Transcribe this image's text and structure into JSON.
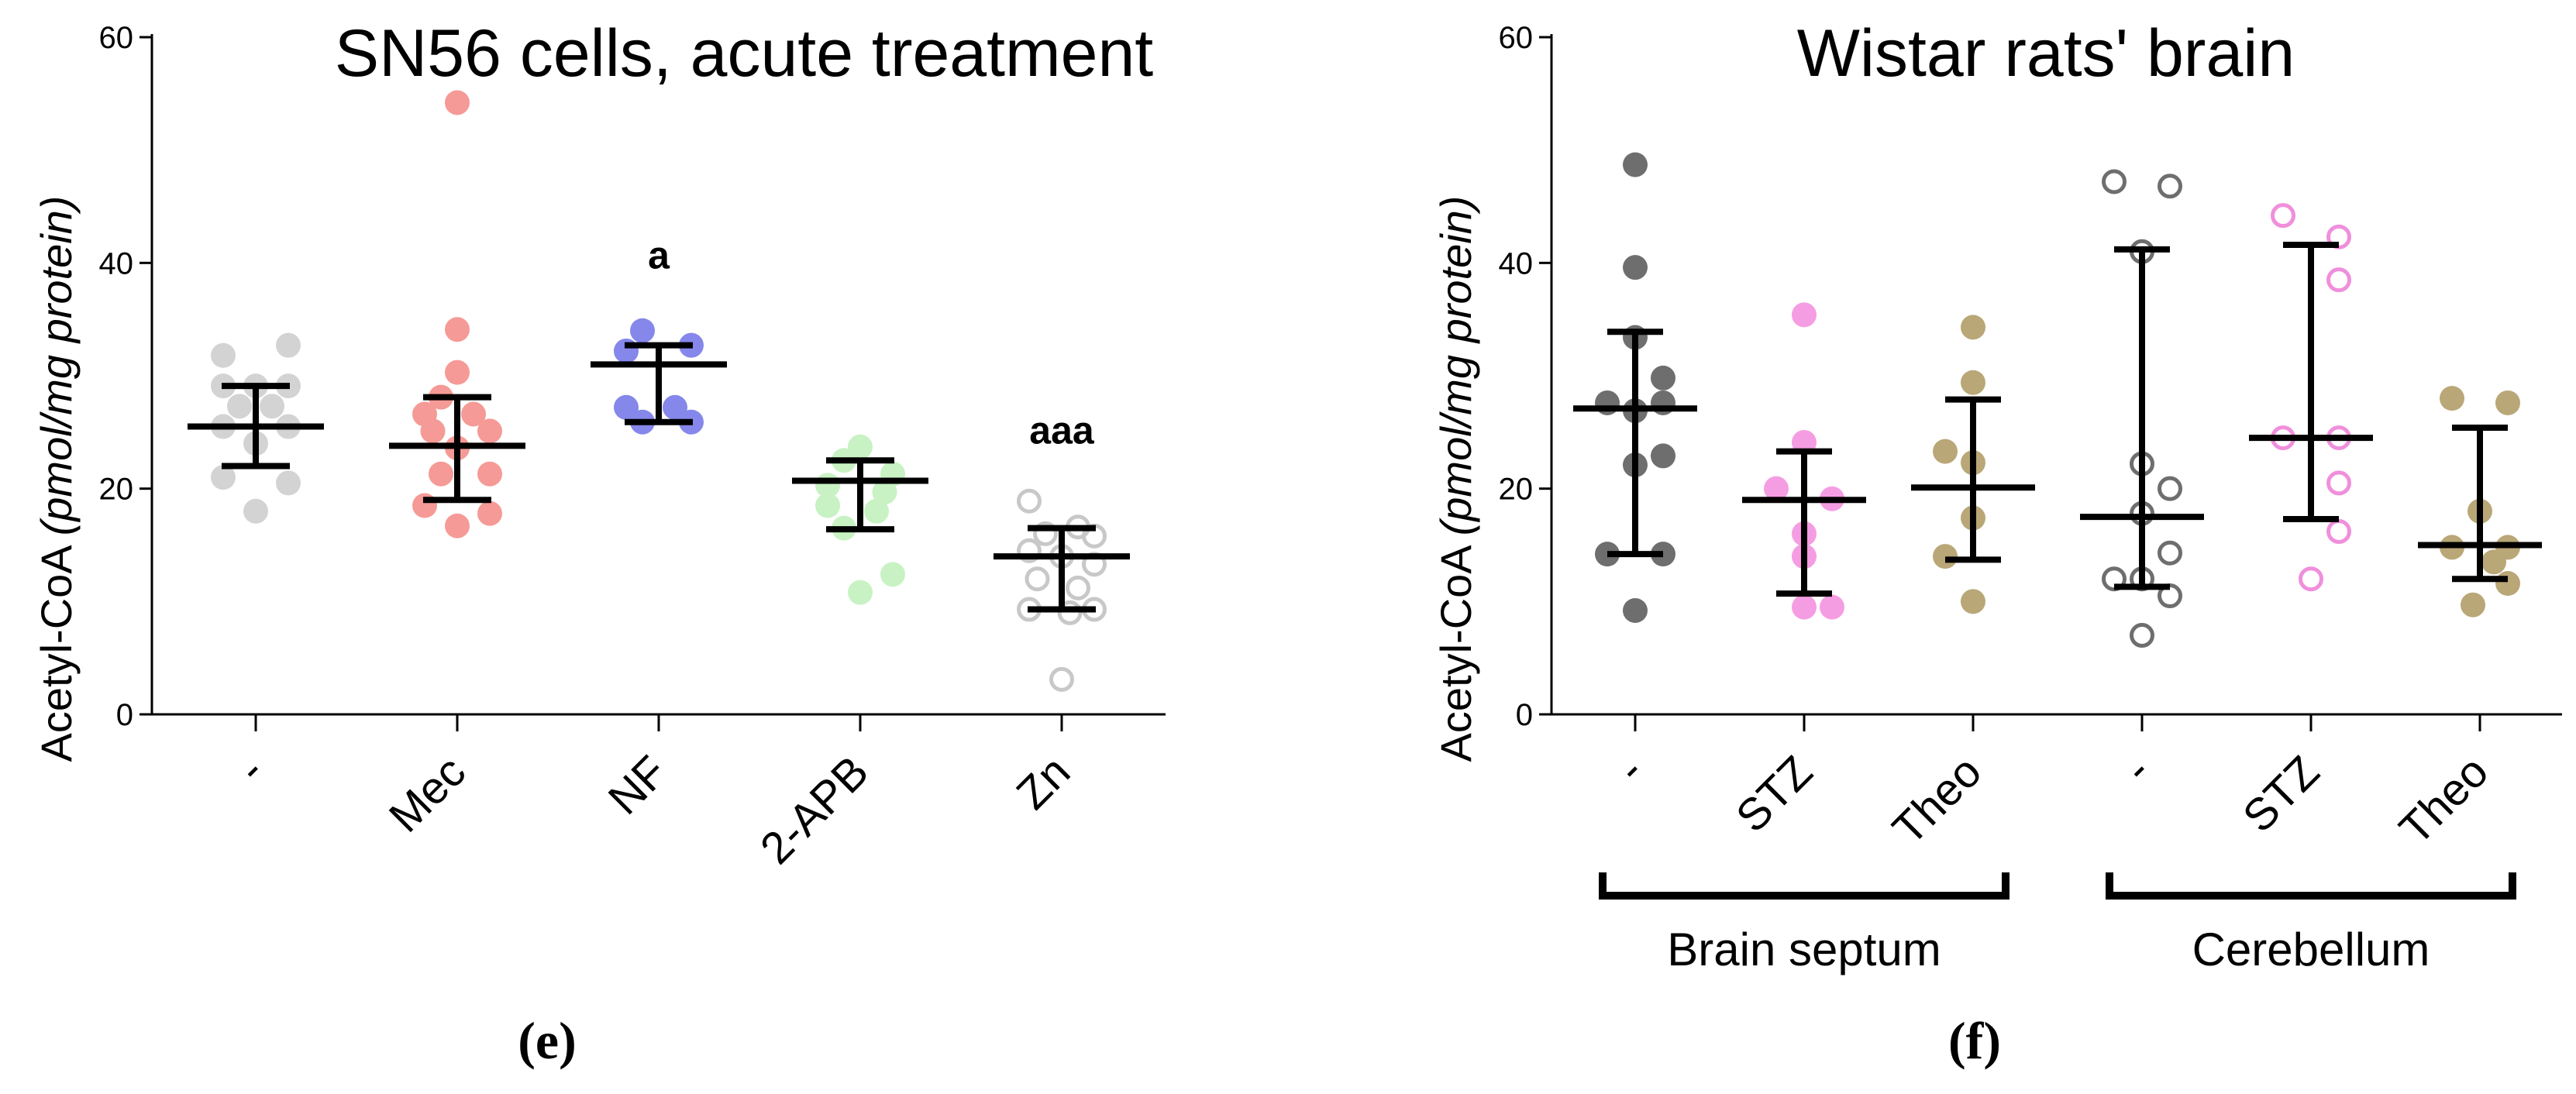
{
  "chart_data": [
    {
      "type": "scatter",
      "panel": "(e)",
      "title": "SN56 cells, acute treatment",
      "ylabel": "Acetyl-CoA",
      "ylabel_unit": "(pmol/mg protein)",
      "ylim": [
        0,
        60
      ],
      "yticks": [
        "0",
        "20",
        "40",
        "60"
      ],
      "categories": [
        "-",
        "Mec",
        "NF",
        "2-APB",
        "Zn"
      ],
      "annotations": [
        {
          "category": 2,
          "text": "a",
          "y": 39.5
        },
        {
          "category": 4,
          "text": "aaa",
          "y": 24
        }
      ],
      "series": [
        {
          "name": "-",
          "color": "#d3d3d3",
          "filled": true,
          "points": [
            [
              -0.2,
              31.8
            ],
            [
              0.2,
              32.7
            ],
            [
              -0.2,
              29.1
            ],
            [
              0,
              29.1
            ],
            [
              0.2,
              29.1
            ],
            [
              -0.1,
              27.3
            ],
            [
              0.1,
              27.3
            ],
            [
              -0.2,
              25.5
            ],
            [
              0.2,
              25.5
            ],
            [
              0,
              24.0
            ],
            [
              -0.2,
              21.0
            ],
            [
              0.2,
              20.5
            ],
            [
              0,
              18.0
            ]
          ],
          "mean": 25.5,
          "err_low": 22.0,
          "err_high": 29.1
        },
        {
          "name": "Mec",
          "color": "#f59a96",
          "filled": true,
          "points": [
            [
              0,
              54.2
            ],
            [
              0,
              34.1
            ],
            [
              0,
              30.3
            ],
            [
              -0.1,
              28.1
            ],
            [
              -0.2,
              26.6
            ],
            [
              0.1,
              26.6
            ],
            [
              -0.15,
              25.1
            ],
            [
              0.2,
              25.1
            ],
            [
              0,
              23.6
            ],
            [
              -0.1,
              21.3
            ],
            [
              0.2,
              21.3
            ],
            [
              -0.2,
              18.5
            ],
            [
              0.2,
              17.8
            ],
            [
              0,
              16.7
            ]
          ],
          "mean": 23.8,
          "err_low": 19.0,
          "err_high": 28.1
        },
        {
          "name": "NF",
          "color": "#8587ea",
          "filled": true,
          "points": [
            [
              -0.1,
              34.0
            ],
            [
              0.2,
              32.7
            ],
            [
              -0.2,
              32.2
            ],
            [
              -0.2,
              27.2
            ],
            [
              0.1,
              27.2
            ],
            [
              -0.1,
              25.9
            ],
            [
              0.2,
              25.9
            ]
          ],
          "mean": 31.0,
          "err_low": 25.9,
          "err_high": 32.7
        },
        {
          "name": "2-APB",
          "color": "#c8f2c3",
          "filled": true,
          "points": [
            [
              0,
              23.7
            ],
            [
              -0.1,
              22.5
            ],
            [
              0.2,
              21.3
            ],
            [
              -0.2,
              20.3
            ],
            [
              0.15,
              19.7
            ],
            [
              -0.2,
              18.5
            ],
            [
              0.1,
              18.0
            ],
            [
              -0.1,
              16.5
            ],
            [
              0.2,
              12.4
            ],
            [
              0,
              10.8
            ]
          ],
          "mean": 20.7,
          "err_low": 16.4,
          "err_high": 22.5
        },
        {
          "name": "Zn",
          "color": "#c8c8c8",
          "filled": false,
          "points": [
            [
              -0.2,
              18.9
            ],
            [
              0.1,
              16.6
            ],
            [
              -0.1,
              16.0
            ],
            [
              0.2,
              15.8
            ],
            [
              -0.2,
              14.5
            ],
            [
              0,
              14.0
            ],
            [
              0.2,
              13.3
            ],
            [
              -0.15,
              12.0
            ],
            [
              0.1,
              11.2
            ],
            [
              -0.2,
              9.3
            ],
            [
              0.05,
              9.0
            ],
            [
              0.2,
              9.3
            ],
            [
              0,
              3.1
            ]
          ],
          "mean": 14.0,
          "err_low": 9.3,
          "err_high": 16.5
        }
      ]
    },
    {
      "type": "scatter",
      "panel": "(f)",
      "title": "Wistar rats' brain",
      "ylabel": "Acetyl-CoA",
      "ylabel_unit": "(pmol/mg protein)",
      "ylim": [
        0,
        60
      ],
      "yticks": [
        "0",
        "20",
        "40",
        "60"
      ],
      "categories": [
        "-",
        "STZ",
        "Theo",
        "-",
        "STZ",
        "Theo"
      ],
      "groups": [
        {
          "label": "Brain septum",
          "from": 0,
          "to": 2
        },
        {
          "label": "Cerebellum",
          "from": 3,
          "to": 5
        }
      ],
      "series": [
        {
          "name": "- (Brain septum)",
          "color": "#6e6e6e",
          "filled": true,
          "points": [
            [
              0,
              48.7
            ],
            [
              0,
              39.6
            ],
            [
              0,
              33.4
            ],
            [
              -0.2,
              27.6
            ],
            [
              0.2,
              27.6
            ],
            [
              0,
              26.9
            ],
            [
              -0.2,
              14.2
            ],
            [
              0.2,
              14.2
            ],
            [
              0,
              22.1
            ],
            [
              0.2,
              22.9
            ],
            [
              0,
              9.2
            ],
            [
              0.2,
              29.8
            ]
          ],
          "mean": 27.1,
          "err_low": 14.2,
          "err_high": 33.9
        },
        {
          "name": "STZ (Brain septum)",
          "color": "#f59de3",
          "filled": true,
          "points": [
            [
              0,
              35.4
            ],
            [
              0,
              24.1
            ],
            [
              -0.2,
              20.0
            ],
            [
              0.2,
              19.1
            ],
            [
              0,
              16.0
            ],
            [
              0,
              14.0
            ],
            [
              0,
              9.5
            ],
            [
              0.2,
              9.5
            ]
          ],
          "mean": 19.0,
          "err_low": 10.7,
          "err_high": 23.3
        },
        {
          "name": "Theo (Brain septum)",
          "color": "#b9a777",
          "filled": true,
          "points": [
            [
              0,
              34.3
            ],
            [
              0,
              29.4
            ],
            [
              -0.2,
              23.3
            ],
            [
              0,
              22.3
            ],
            [
              0,
              17.4
            ],
            [
              -0.2,
              14.0
            ],
            [
              0,
              10.0
            ]
          ],
          "mean": 20.1,
          "err_low": 13.7,
          "err_high": 27.9
        },
        {
          "name": "- (Cerebellum)",
          "color": "#6e6e6e",
          "filled": false,
          "points": [
            [
              -0.2,
              47.2
            ],
            [
              0.2,
              46.8
            ],
            [
              0,
              41.0
            ],
            [
              0,
              22.2
            ],
            [
              0.2,
              20.0
            ],
            [
              0,
              17.8
            ],
            [
              0.2,
              14.3
            ],
            [
              -0.2,
              12.0
            ],
            [
              0,
              12.0
            ],
            [
              0.2,
              10.5
            ],
            [
              0,
              7.0
            ]
          ],
          "mean": 17.5,
          "err_low": 11.3,
          "err_high": 41.2
        },
        {
          "name": "STZ (Cerebellum)",
          "color": "#f08fdc",
          "filled": false,
          "points": [
            [
              -0.2,
              44.2
            ],
            [
              0.2,
              42.3
            ],
            [
              0.2,
              38.5
            ],
            [
              -0.2,
              24.5
            ],
            [
              0.2,
              24.5
            ],
            [
              0.2,
              20.5
            ],
            [
              0.2,
              16.2
            ],
            [
              0,
              12.0
            ]
          ],
          "mean": 24.5,
          "err_low": 17.3,
          "err_high": 41.6
        },
        {
          "name": "Theo (Cerebellum)",
          "color": "#b9a777",
          "filled": true,
          "points": [
            [
              -0.2,
              28.0
            ],
            [
              0.2,
              27.6
            ],
            [
              0,
              18.0
            ],
            [
              -0.2,
              14.8
            ],
            [
              0.2,
              14.8
            ],
            [
              0.2,
              11.6
            ],
            [
              -0.05,
              9.7
            ],
            [
              0.1,
              13.5
            ]
          ],
          "mean": 15.0,
          "err_low": 12.0,
          "err_high": 25.4
        }
      ]
    }
  ]
}
